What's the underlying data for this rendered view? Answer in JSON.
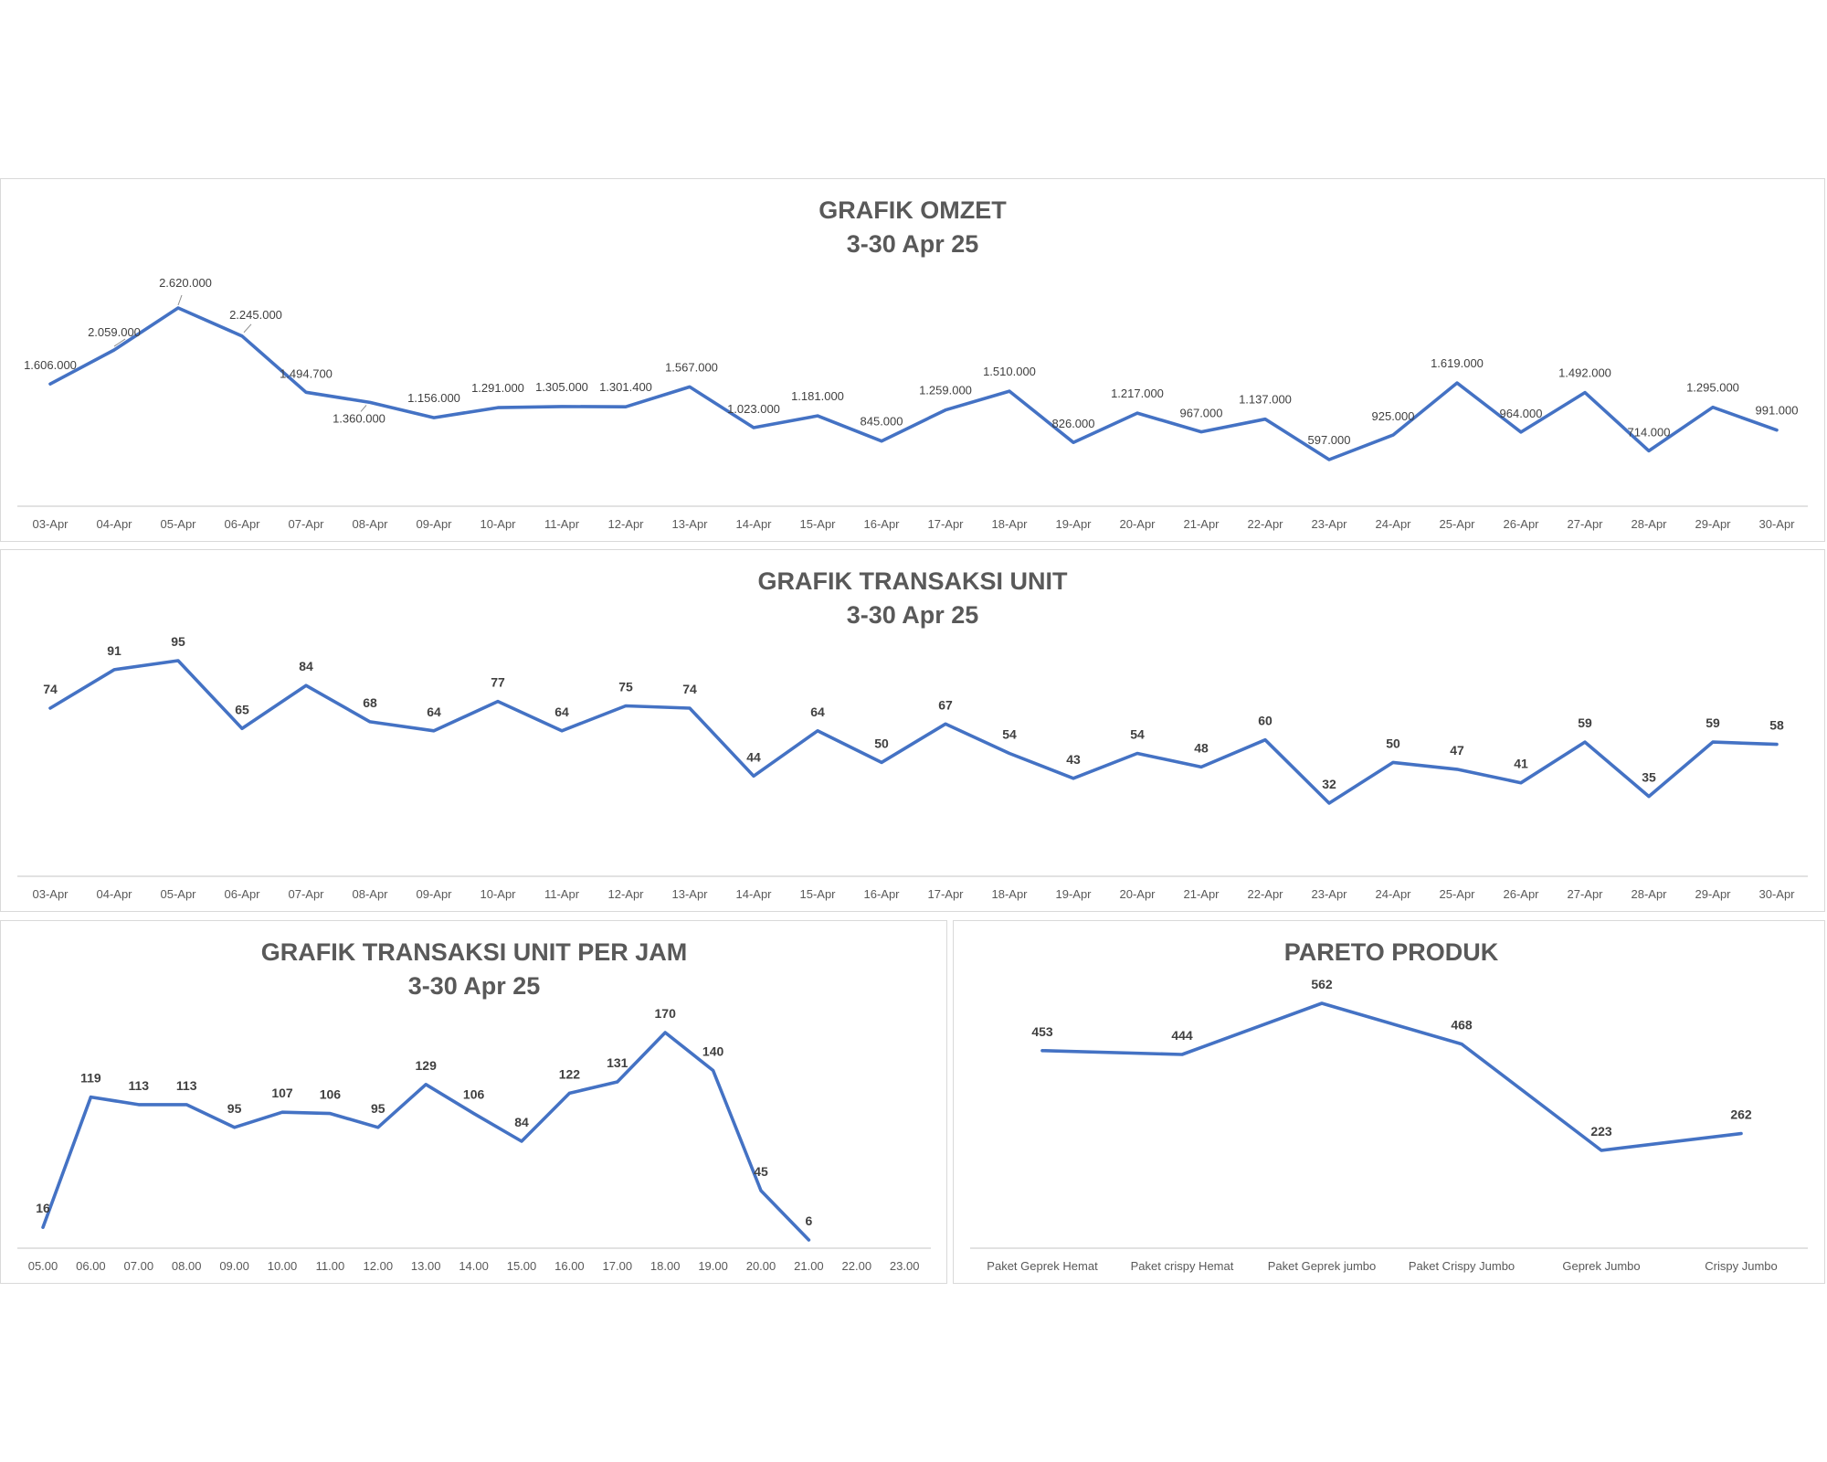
{
  "chart_data": [
    {
      "type": "line",
      "title": "GRAFIK OMZET",
      "subtitle": "3-30 Apr 25",
      "categories": [
        "03-Apr",
        "04-Apr",
        "05-Apr",
        "06-Apr",
        "07-Apr",
        "08-Apr",
        "09-Apr",
        "10-Apr",
        "11-Apr",
        "12-Apr",
        "13-Apr",
        "14-Apr",
        "15-Apr",
        "16-Apr",
        "17-Apr",
        "18-Apr",
        "19-Apr",
        "20-Apr",
        "21-Apr",
        "22-Apr",
        "23-Apr",
        "24-Apr",
        "25-Apr",
        "26-Apr",
        "27-Apr",
        "28-Apr",
        "29-Apr",
        "30-Apr"
      ],
      "values": [
        1606000,
        2059000,
        2620000,
        2245000,
        1494700,
        1360000,
        1156000,
        1291000,
        1305000,
        1301400,
        1567000,
        1023000,
        1181000,
        845000,
        1259000,
        1510000,
        826000,
        1217000,
        967000,
        1137000,
        597000,
        925000,
        1619000,
        964000,
        1492000,
        714000,
        1295000,
        991000
      ],
      "data_labels": [
        "1.606.000",
        "2.059.000",
        "2.620.000",
        "2.245.000",
        "1.494.700",
        "1.360.000",
        "1.156.000",
        "1.291.000",
        "1.305.000",
        "1.301.400",
        "1.567.000",
        "1.023.000",
        "1.181.000",
        "845.000",
        "1.259.000",
        "1.510.000",
        "826.000",
        "1.217.000",
        "967.000",
        "1.137.000",
        "597.000",
        "925.000",
        "1.619.000",
        "964.000",
        "1.492.000",
        "714.000",
        "1.295.000",
        "991.000"
      ],
      "xlabel": "",
      "ylabel": "",
      "grid": false,
      "legend": "none",
      "color": "#4472c4"
    },
    {
      "type": "line",
      "title": "GRAFIK TRANSAKSI UNIT",
      "subtitle": "3-30 Apr 25",
      "categories": [
        "03-Apr",
        "04-Apr",
        "05-Apr",
        "06-Apr",
        "07-Apr",
        "08-Apr",
        "09-Apr",
        "10-Apr",
        "11-Apr",
        "12-Apr",
        "13-Apr",
        "14-Apr",
        "15-Apr",
        "16-Apr",
        "17-Apr",
        "18-Apr",
        "19-Apr",
        "20-Apr",
        "21-Apr",
        "22-Apr",
        "23-Apr",
        "24-Apr",
        "25-Apr",
        "26-Apr",
        "27-Apr",
        "28-Apr",
        "29-Apr",
        "30-Apr"
      ],
      "values": [
        74,
        91,
        95,
        65,
        84,
        68,
        64,
        77,
        64,
        75,
        74,
        44,
        64,
        50,
        67,
        54,
        43,
        54,
        48,
        60,
        32,
        50,
        47,
        41,
        59,
        35,
        59,
        58
      ],
      "data_labels": [
        "74",
        "91",
        "95",
        "65",
        "84",
        "68",
        "64",
        "77",
        "64",
        "75",
        "74",
        "44",
        "64",
        "50",
        "67",
        "54",
        "43",
        "54",
        "48",
        "60",
        "32",
        "50",
        "47",
        "41",
        "59",
        "35",
        "59",
        "58"
      ],
      "xlabel": "",
      "ylabel": "",
      "grid": false,
      "legend": "none",
      "color": "#4472c4"
    },
    {
      "type": "line",
      "title": "GRAFIK TRANSAKSI UNIT PER JAM",
      "subtitle": "3-30 Apr 25",
      "categories": [
        "05.00",
        "06.00",
        "07.00",
        "08.00",
        "09.00",
        "10.00",
        "11.00",
        "12.00",
        "13.00",
        "14.00",
        "15.00",
        "16.00",
        "17.00",
        "18.00",
        "19.00",
        "20.00",
        "21.00",
        "22.00",
        "23.00"
      ],
      "values": [
        16,
        119,
        113,
        113,
        95,
        107,
        106,
        95,
        129,
        106,
        84,
        122,
        131,
        170,
        140,
        45,
        6,
        null,
        null
      ],
      "data_labels": [
        "16",
        "119",
        "113",
        "113",
        "95",
        "107",
        "106",
        "95",
        "129",
        "106",
        "84",
        "122",
        "131",
        "170",
        "140",
        "45",
        "6",
        "",
        ""
      ],
      "xlabel": "",
      "ylabel": "",
      "grid": false,
      "legend": "none",
      "color": "#4472c4"
    },
    {
      "type": "line",
      "title": "PARETO PRODUK",
      "subtitle": "",
      "categories": [
        "Paket Geprek Hemat",
        "Paket crispy Hemat",
        "Paket Geprek jumbo",
        "Paket Crispy Jumbo",
        "Geprek Jumbo",
        "Crispy Jumbo"
      ],
      "values": [
        453,
        444,
        562,
        468,
        223,
        262
      ],
      "data_labels": [
        "453",
        "444",
        "562",
        "468",
        "223",
        "262"
      ],
      "xlabel": "",
      "ylabel": "",
      "grid": false,
      "legend": "none",
      "color": "#4472c4"
    }
  ]
}
